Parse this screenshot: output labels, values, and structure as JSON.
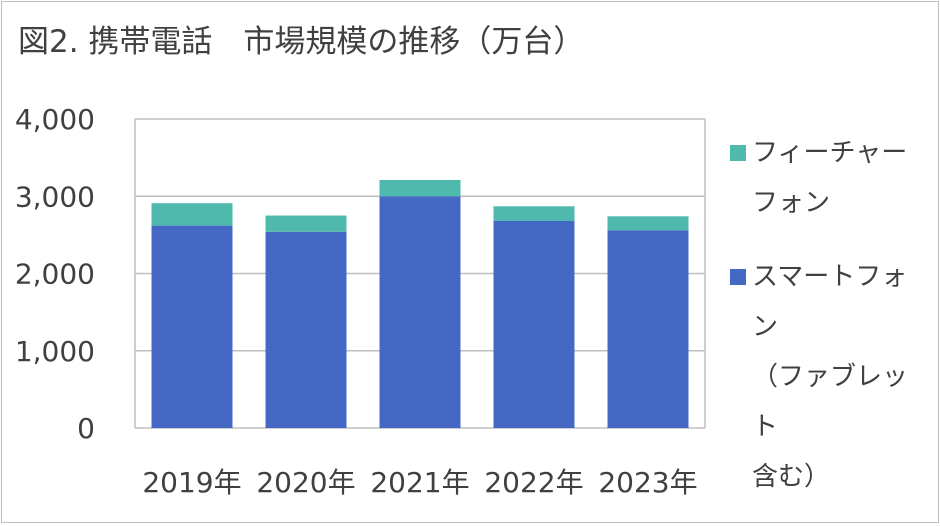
{
  "title": "図2. 携帯電話　市場規模の推移（万台）",
  "chart_data": {
    "type": "bar",
    "stacked": true,
    "title": "図2. 携帯電話　市場規模の推移（万台）",
    "categories": [
      "2019年",
      "2020年",
      "2021年",
      "2022年",
      "2023年"
    ],
    "series": [
      {
        "name": "スマートフォン（ファブレット含む）",
        "name_lines": [
          "スマートフォン",
          "（ファブレット",
          "含む）"
        ],
        "color": "#4468c4",
        "values": [
          2620,
          2540,
          3000,
          2680,
          2560
        ]
      },
      {
        "name": "フィーチャーフォン",
        "name_lines": [
          "フィーチャー",
          "フォン"
        ],
        "color": "#4fb9ad",
        "values": [
          290,
          210,
          210,
          190,
          180
        ]
      }
    ],
    "ylim": [
      0,
      4000
    ],
    "yticks": [
      0,
      1000,
      2000,
      3000,
      4000
    ],
    "ytick_labels": [
      "0",
      "1,000",
      "2,000",
      "3,000",
      "4,000"
    ],
    "grid": true,
    "legend_position": "right"
  }
}
